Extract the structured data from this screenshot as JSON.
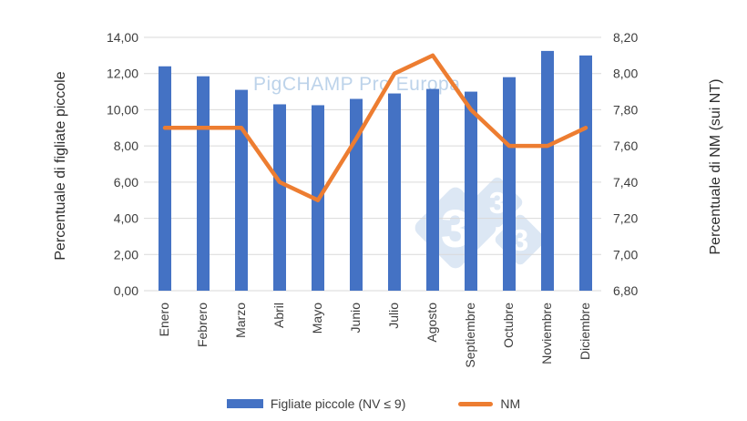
{
  "watermark": {
    "text": "PigCHAMP Pro Europa",
    "color": "#BDD3EA"
  },
  "logo_badge": {
    "digits": [
      "3",
      "3",
      "3"
    ],
    "diamond_color": "#DCE7F4",
    "digit_color": "#FFFFFF"
  },
  "chart_data": {
    "type": "bar",
    "subtype": "combo-bar-line-dual-axis",
    "categories": [
      "Enero",
      "Febrero",
      "Marzo",
      "Abril",
      "Mayo",
      "Junio",
      "Julio",
      "Agosto",
      "Septiembre",
      "Octubre",
      "Noviembre",
      "Diciembre"
    ],
    "series": [
      {
        "name": "Figliate piccole (NV ≤ 9)",
        "type": "bar",
        "axis": "left",
        "color": "#4472C4",
        "values": [
          12.4,
          11.85,
          11.1,
          10.3,
          10.25,
          10.6,
          10.9,
          11.15,
          11.0,
          11.8,
          13.25,
          13.0
        ]
      },
      {
        "name": "NM",
        "type": "line",
        "axis": "right",
        "color": "#ED7D31",
        "values": [
          7.7,
          7.7,
          7.7,
          7.4,
          7.3,
          7.64,
          8.0,
          8.1,
          7.8,
          7.6,
          7.6,
          7.7
        ]
      }
    ],
    "left_axis": {
      "title": "Percentuale di figliate piccole",
      "min": 0,
      "max": 14,
      "ticks": [
        {
          "v": 14,
          "label": "14,00"
        },
        {
          "v": 12,
          "label": "12,00"
        },
        {
          "v": 10,
          "label": "10,00"
        },
        {
          "v": 8,
          "label": "8,00"
        },
        {
          "v": 6,
          "label": "6,00"
        },
        {
          "v": 4,
          "label": "4,00"
        },
        {
          "v": 2,
          "label": "2,00"
        },
        {
          "v": 0,
          "label": "0,00"
        }
      ]
    },
    "right_axis": {
      "title": "Percentuale di NM (sui NT)",
      "min": 6.8,
      "max": 8.2,
      "ticks": [
        {
          "v": 8.2,
          "label": "8,20"
        },
        {
          "v": 8.0,
          "label": "8,00"
        },
        {
          "v": 7.8,
          "label": "7,80"
        },
        {
          "v": 7.6,
          "label": "7,60"
        },
        {
          "v": 7.4,
          "label": "7,40"
        },
        {
          "v": 7.2,
          "label": "7,20"
        },
        {
          "v": 7.0,
          "label": "7,00"
        },
        {
          "v": 6.8,
          "label": "6,80"
        }
      ]
    },
    "grid": true,
    "gridline_color": "#D9D9D9",
    "legend_position": "bottom",
    "x_label_rotation": -90
  },
  "legend": {
    "items": [
      {
        "label": "Figliate piccole (NV ≤ 9)",
        "swatch": "bar",
        "color": "#4472C4"
      },
      {
        "label": "NM",
        "swatch": "line",
        "color": "#ED7D31"
      }
    ]
  }
}
